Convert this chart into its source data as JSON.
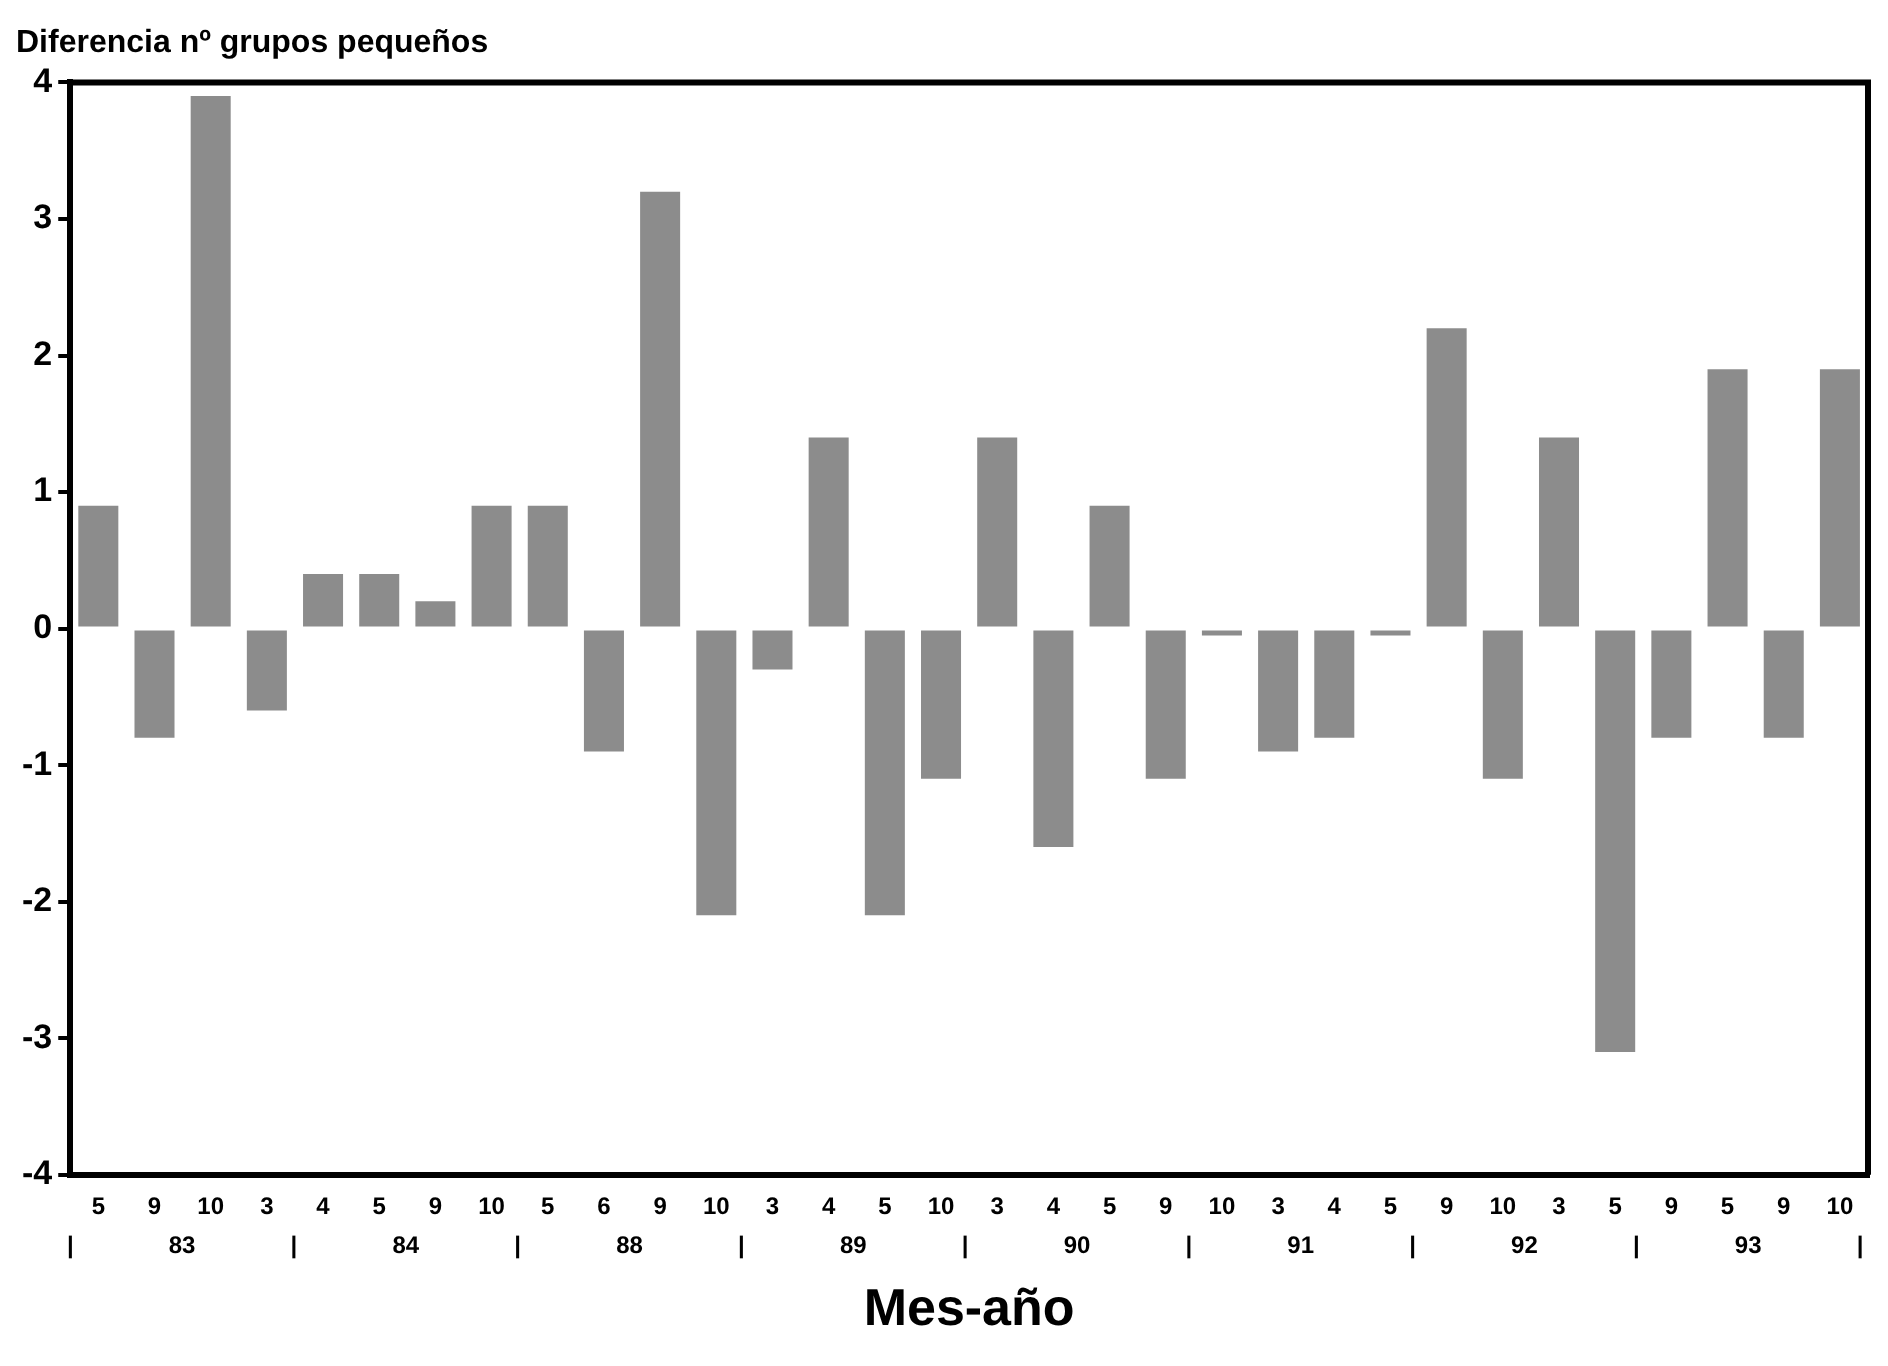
{
  "chart_data": {
    "type": "bar",
    "title": "Diferencia nº grupos pequeños",
    "xlabel": "Mes-año",
    "categories": [
      "5",
      "9",
      "10",
      "3",
      "4",
      "5",
      "9",
      "10",
      "5",
      "6",
      "9",
      "10",
      "3",
      "4",
      "5",
      "10",
      "3",
      "4",
      "5",
      "9",
      "10",
      "3",
      "4",
      "5",
      "9",
      "10",
      "3",
      "5",
      "9",
      "5",
      "9",
      "10"
    ],
    "values": [
      0.9,
      -0.8,
      3.9,
      -0.6,
      0.4,
      0.4,
      0.2,
      0.9,
      0.9,
      -0.9,
      3.2,
      -2.1,
      -0.3,
      1.4,
      -2.1,
      -1.1,
      1.4,
      -1.6,
      0.9,
      -1.1,
      -0.05,
      -0.9,
      -0.8,
      -0.05,
      2.2,
      -1.1,
      1.4,
      -3.1,
      -0.8,
      1.9,
      -0.8,
      1.9
    ],
    "color": "#8c8c8c",
    "ylim": [
      -4,
      4
    ],
    "yticks": [
      -4,
      -3,
      -2,
      -1,
      0,
      1,
      2,
      3,
      4
    ],
    "grid": false,
    "legend": false,
    "annotations": [
      "| 83 | 84 | 88 | 89 | 90 | 91 | 92 | 93 |"
    ]
  }
}
